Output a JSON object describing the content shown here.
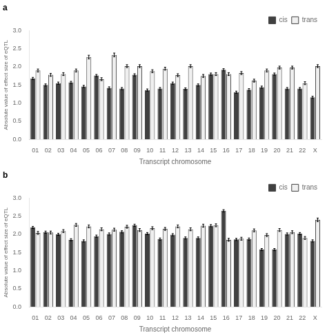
{
  "chart_data": [
    {
      "type": "bar",
      "title": "a",
      "categories": [
        "01",
        "02",
        "03",
        "04",
        "05",
        "06",
        "07",
        "08",
        "09",
        "10",
        "11",
        "12",
        "13",
        "14",
        "15",
        "16",
        "17",
        "18",
        "19",
        "20",
        "21",
        "22",
        "X"
      ],
      "series": [
        {
          "name": "cis",
          "color": "#404040",
          "values": [
            1.68,
            1.5,
            1.55,
            1.57,
            1.46,
            1.76,
            1.42,
            1.4,
            1.78,
            1.36,
            1.4,
            1.55,
            1.39,
            1.5,
            1.8,
            1.92,
            1.3,
            1.37,
            1.44,
            1.8,
            1.4,
            1.4,
            1.16
          ],
          "errors": [
            0.03,
            0.03,
            0.03,
            0.03,
            0.03,
            0.03,
            0.03,
            0.03,
            0.03,
            0.03,
            0.03,
            0.03,
            0.03,
            0.03,
            0.03,
            0.03,
            0.03,
            0.03,
            0.03,
            0.03,
            0.03,
            0.03,
            0.03
          ]
        },
        {
          "name": "trans",
          "color": "#f0f0f0",
          "values": [
            1.9,
            1.78,
            1.8,
            1.9,
            2.27,
            1.66,
            2.33,
            2.02,
            2.02,
            1.88,
            1.95,
            1.77,
            2.02,
            1.75,
            1.8,
            1.8,
            1.83,
            1.62,
            1.9,
            1.98,
            1.98,
            1.55,
            2.02
          ],
          "errors": [
            0.04,
            0.04,
            0.04,
            0.04,
            0.05,
            0.04,
            0.05,
            0.04,
            0.04,
            0.04,
            0.04,
            0.04,
            0.04,
            0.04,
            0.04,
            0.04,
            0.04,
            0.04,
            0.04,
            0.04,
            0.04,
            0.04,
            0.04
          ]
        }
      ],
      "xlabel": "Transcript chromosome",
      "ylabel": "Absolute value of effect size of eQTL",
      "ylim": [
        0.0,
        3.0
      ],
      "yticks": [
        {
          "value": 0,
          "label": "0.0"
        },
        0.5,
        {
          "value": 1,
          "label": "1.0"
        },
        1.5,
        {
          "value": 2,
          "label": "2.0"
        },
        2.5,
        {
          "value": 3,
          "label": "3.0"
        }
      ],
      "grid": false,
      "legend": "upper right"
    },
    {
      "type": "bar",
      "title": "b",
      "categories": [
        "01",
        "02",
        "03",
        "04",
        "05",
        "06",
        "07",
        "08",
        "09",
        "10",
        "11",
        "12",
        "13",
        "14",
        "15",
        "16",
        "17",
        "18",
        "19",
        "20",
        "21",
        "22",
        "X"
      ],
      "series": [
        {
          "name": "cis",
          "color": "#404040",
          "values": [
            2.19,
            2.06,
            2.0,
            1.85,
            1.82,
            1.95,
            2.01,
            2.07,
            2.25,
            2.02,
            1.87,
            1.99,
            1.9,
            1.9,
            2.24,
            2.65,
            1.86,
            1.87,
            1.58,
            1.58,
            2.01,
            2.02,
            1.82
          ],
          "errors": [
            0.03,
            0.03,
            0.03,
            0.03,
            0.03,
            0.03,
            0.03,
            0.03,
            0.03,
            0.03,
            0.03,
            0.03,
            0.03,
            0.03,
            0.03,
            0.03,
            0.03,
            0.03,
            0.03,
            0.03,
            0.03,
            0.03,
            0.03
          ]
        },
        {
          "name": "trans",
          "color": "#f0f0f0",
          "values": [
            2.04,
            2.05,
            2.09,
            2.26,
            2.22,
            2.14,
            2.13,
            2.21,
            2.12,
            2.17,
            2.15,
            2.22,
            2.14,
            2.24,
            2.25,
            1.85,
            1.88,
            2.11,
            1.98,
            2.12,
            2.06,
            1.9,
            2.4
          ],
          "errors": [
            0.04,
            0.04,
            0.04,
            0.04,
            0.04,
            0.04,
            0.04,
            0.04,
            0.04,
            0.04,
            0.04,
            0.04,
            0.04,
            0.04,
            0.04,
            0.04,
            0.04,
            0.04,
            0.04,
            0.04,
            0.04,
            0.04,
            0.05
          ]
        }
      ],
      "xlabel": "Transcript chromosome",
      "ylabel": "Absolute value of effect size of eQTL",
      "ylim": [
        0.0,
        3.0
      ],
      "yticks": [
        {
          "value": 0,
          "label": "0.0"
        },
        0.5,
        {
          "value": 1,
          "label": "1.0"
        },
        1.5,
        {
          "value": 2,
          "label": "2.0"
        },
        2.5,
        {
          "value": 3,
          "label": "3.0"
        }
      ],
      "grid": false,
      "legend": "upper right"
    }
  ]
}
